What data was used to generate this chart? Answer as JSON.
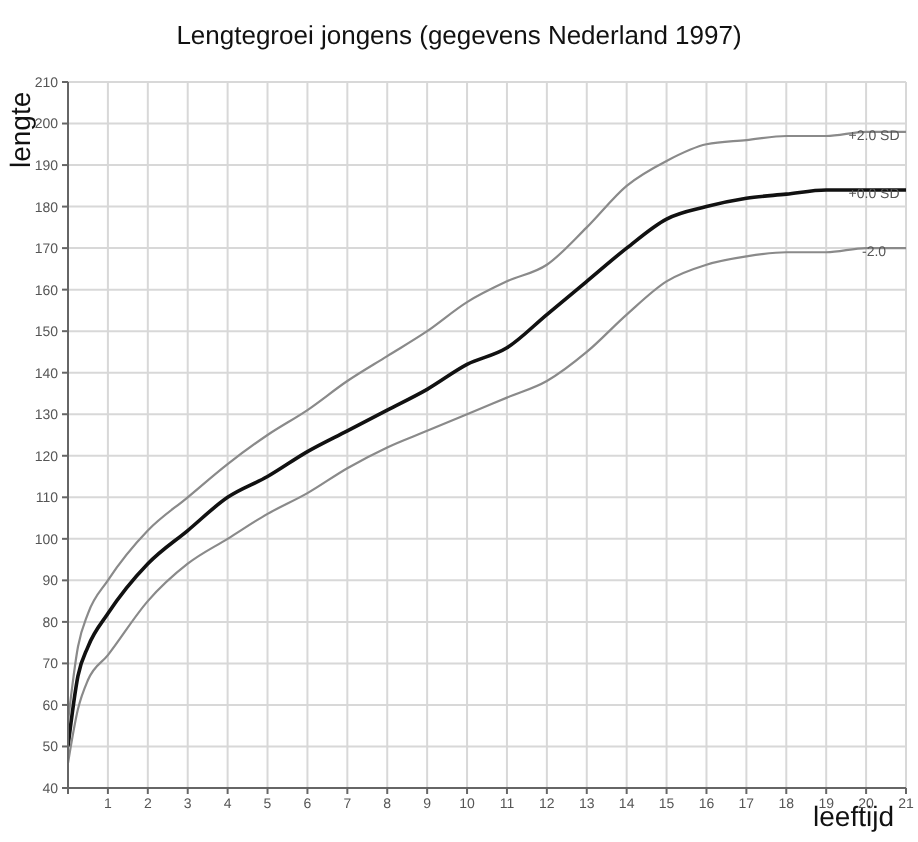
{
  "chart_data": {
    "type": "line",
    "title": "Lengtegroei jongens (gegevens Nederland 1997)",
    "xlabel": "leeftijd",
    "ylabel": "lengte",
    "x": [
      0,
      0.25,
      0.5,
      1,
      2,
      3,
      4,
      5,
      6,
      7,
      8,
      9,
      10,
      11,
      12,
      13,
      14,
      15,
      16,
      17,
      18,
      19,
      20,
      21
    ],
    "series": [
      {
        "name": "+2.0 SD",
        "color": "#8a8a8a",
        "values": [
          56,
          74,
          82,
          90,
          102,
          110,
          118,
          125,
          131,
          138,
          144,
          150,
          157,
          162,
          166,
          175,
          185,
          191,
          195,
          196,
          197,
          197,
          198,
          198
        ]
      },
      {
        "name": "+0.0 SD",
        "color": "#111111",
        "values": [
          50,
          67,
          74,
          82,
          94,
          102,
          110,
          115,
          121,
          126,
          131,
          136,
          142,
          146,
          154,
          162,
          170,
          177,
          180,
          182,
          183,
          184,
          184,
          184
        ]
      },
      {
        "name": "-2.0",
        "color": "#8a8a8a",
        "values": [
          46,
          59,
          66,
          72,
          85,
          94,
          100,
          106,
          111,
          117,
          122,
          126,
          130,
          134,
          138,
          145,
          154,
          162,
          166,
          168,
          169,
          169,
          170,
          170
        ]
      }
    ],
    "xlim": [
      0,
      21
    ],
    "xticks": [
      {
        "value": 0,
        "label": null
      },
      1,
      2,
      3,
      4,
      5,
      6,
      7,
      8,
      9,
      10,
      11,
      12,
      13,
      14,
      15,
      16,
      17,
      18,
      19,
      20,
      21
    ],
    "ylim": [
      40,
      210
    ],
    "yticks": [
      40,
      50,
      60,
      70,
      80,
      90,
      100,
      110,
      120,
      130,
      140,
      150,
      160,
      170,
      180,
      190,
      200,
      210
    ],
    "grid": true,
    "legend": false,
    "marker": "none",
    "line_style": "solid"
  }
}
